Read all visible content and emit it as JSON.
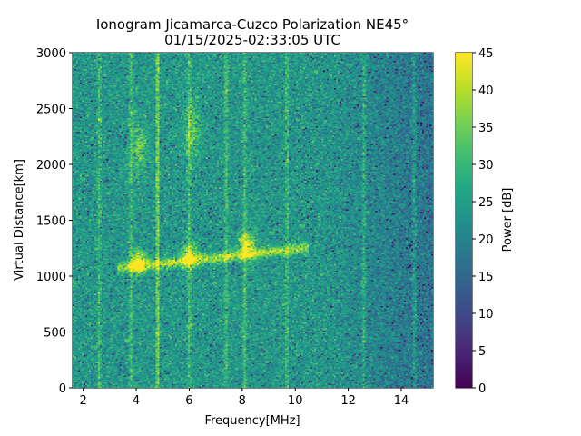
{
  "chart_data": {
    "type": "heatmap",
    "title": "Ionogram Jicamarca-Cuzco Polarization NE45°",
    "subtitle": "01/15/2025-02:33:05 UTC",
    "xlabel": "Frequency[MHz]",
    "ylabel": "Virtual Distance[km]",
    "colorbar_label": "Power [dB]",
    "xlim": [
      1.6,
      15.2
    ],
    "ylim": [
      0,
      3000
    ],
    "clim": [
      0,
      45
    ],
    "colormap": "viridis",
    "xticks": [
      "2",
      "4",
      "6",
      "8",
      "10",
      "12",
      "14"
    ],
    "yticks": [
      "0",
      "500",
      "1000",
      "1500",
      "2000",
      "2500",
      "3000"
    ],
    "cticks": [
      "0",
      "5",
      "10",
      "15",
      "20",
      "25",
      "30",
      "35",
      "40",
      "45"
    ],
    "background_noise_db": {
      "below_11MHz": 24,
      "above_11MHz": 19
    },
    "interference_lines_mhz": [
      2.6,
      3.8,
      4.8,
      6.0,
      7.4,
      8.1,
      9.7,
      12.6,
      14.5
    ],
    "echo_trace": {
      "freq_start_mhz": 3.3,
      "freq_end_mhz": 10.5,
      "distance_km": [
        1070,
        1250
      ],
      "peak_db": 42
    },
    "bright_spots": [
      {
        "freq_mhz": 4.1,
        "distance_km": 1130,
        "db": 43
      },
      {
        "freq_mhz": 6.0,
        "distance_km": 1180,
        "db": 42
      },
      {
        "freq_mhz": 8.2,
        "distance_km": 1280,
        "db": 44
      },
      {
        "freq_mhz": 4.1,
        "distance_km": 2150,
        "db": 34
      },
      {
        "freq_mhz": 6.1,
        "distance_km": 2300,
        "db": 34
      }
    ]
  }
}
